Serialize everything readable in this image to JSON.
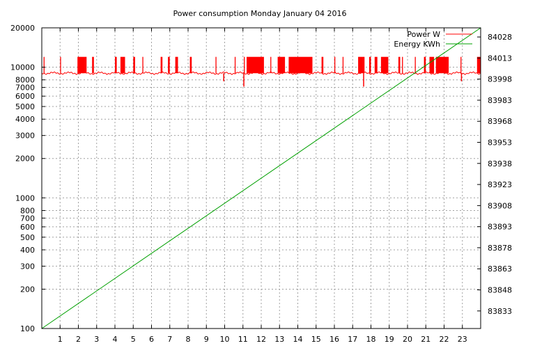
{
  "chart_data": {
    "type": "line",
    "title": "Power consumption Monday January 04 2016",
    "xlabel": "",
    "ylabel": "",
    "y2label": "",
    "grid": true,
    "legend_position": "top-right",
    "xlim": [
      0,
      24
    ],
    "ylim": [
      100,
      20000
    ],
    "y_scale": "log",
    "y2lim": [
      83820.5,
      84034.5
    ],
    "x_ticks": [
      "1",
      "2",
      "3",
      "4",
      "5",
      "6",
      "7",
      "8",
      "9",
      "10",
      "11",
      "12",
      "13",
      "14",
      "15",
      "16",
      "17",
      "18",
      "19",
      "20",
      "21",
      "22",
      "23"
    ],
    "y_ticks": [
      {
        "value": 100,
        "label": "100"
      },
      {
        "value": 200,
        "label": "200"
      },
      {
        "value": 300,
        "label": "300"
      },
      {
        "value": 400,
        "label": "400"
      },
      {
        "value": 500,
        "label": "500"
      },
      {
        "value": 600,
        "label": "600"
      },
      {
        "value": 700,
        "label": "700"
      },
      {
        "value": 800,
        "label": "800"
      },
      {
        "value": 1000,
        "label": "1000"
      },
      {
        "value": 2000,
        "label": "2000"
      },
      {
        "value": 3000,
        "label": "3000"
      },
      {
        "value": 4000,
        "label": "4000"
      },
      {
        "value": 5000,
        "label": "5000"
      },
      {
        "value": 6000,
        "label": "6000"
      },
      {
        "value": 7000,
        "label": "7000"
      },
      {
        "value": 8000,
        "label": "8000"
      },
      {
        "value": 10000,
        "label": "10000"
      },
      {
        "value": 20000,
        "label": "20000"
      }
    ],
    "y2_ticks": [
      {
        "value": 83833,
        "label": "83833"
      },
      {
        "value": 83848,
        "label": "83848"
      },
      {
        "value": 83863,
        "label": "83863"
      },
      {
        "value": 83878,
        "label": "83878"
      },
      {
        "value": 83893,
        "label": "83893"
      },
      {
        "value": 83908,
        "label": "83908"
      },
      {
        "value": 83923,
        "label": "83923"
      },
      {
        "value": 83938,
        "label": "83938"
      },
      {
        "value": 83953,
        "label": "83953"
      },
      {
        "value": 83968,
        "label": "83968"
      },
      {
        "value": 83983,
        "label": "83983"
      },
      {
        "value": 83998,
        "label": "83998"
      },
      {
        "value": 84013,
        "label": "84013"
      },
      {
        "value": 84028,
        "label": "84028"
      }
    ],
    "series": [
      {
        "name": "Power W",
        "color": "#ff0000",
        "axis": "left",
        "baseline": 9000,
        "spike_value": 12000,
        "spikes": [
          [
            0.1,
            0.15
          ],
          [
            1.0,
            1.05
          ],
          [
            1.95,
            2.45
          ],
          [
            2.75,
            2.85
          ],
          [
            4.0,
            4.1
          ],
          [
            4.3,
            4.55
          ],
          [
            5.0,
            5.1
          ],
          [
            5.5,
            5.55
          ],
          [
            6.5,
            6.6
          ],
          [
            6.9,
            7.0
          ],
          [
            7.3,
            7.45
          ],
          [
            8.1,
            8.2
          ],
          [
            9.5,
            9.55
          ],
          [
            10.55,
            10.6
          ],
          [
            11.05,
            11.1
          ],
          [
            11.2,
            12.15
          ],
          [
            12.5,
            12.55
          ],
          [
            12.9,
            13.3
          ],
          [
            13.5,
            14.8
          ],
          [
            15.3,
            15.4
          ],
          [
            16.0,
            16.05
          ],
          [
            16.45,
            16.5
          ],
          [
            17.3,
            17.65
          ],
          [
            17.9,
            18.0
          ],
          [
            18.2,
            18.35
          ],
          [
            18.55,
            18.95
          ],
          [
            19.5,
            19.6
          ],
          [
            19.7,
            19.75
          ],
          [
            20.4,
            20.45
          ],
          [
            20.9,
            21.0
          ],
          [
            21.2,
            21.45
          ],
          [
            21.55,
            22.25
          ],
          [
            22.9,
            22.95
          ],
          [
            23.8,
            24.0
          ]
        ],
        "dips": [
          [
            9.95,
            7800
          ],
          [
            11.05,
            7100
          ],
          [
            17.6,
            7100
          ],
          [
            22.95,
            7800
          ]
        ]
      },
      {
        "name": "Energy KWh",
        "color": "#00a000",
        "axis": "right",
        "x": [
          0,
          24
        ],
        "values": [
          83820.5,
          84034.5
        ]
      }
    ]
  }
}
